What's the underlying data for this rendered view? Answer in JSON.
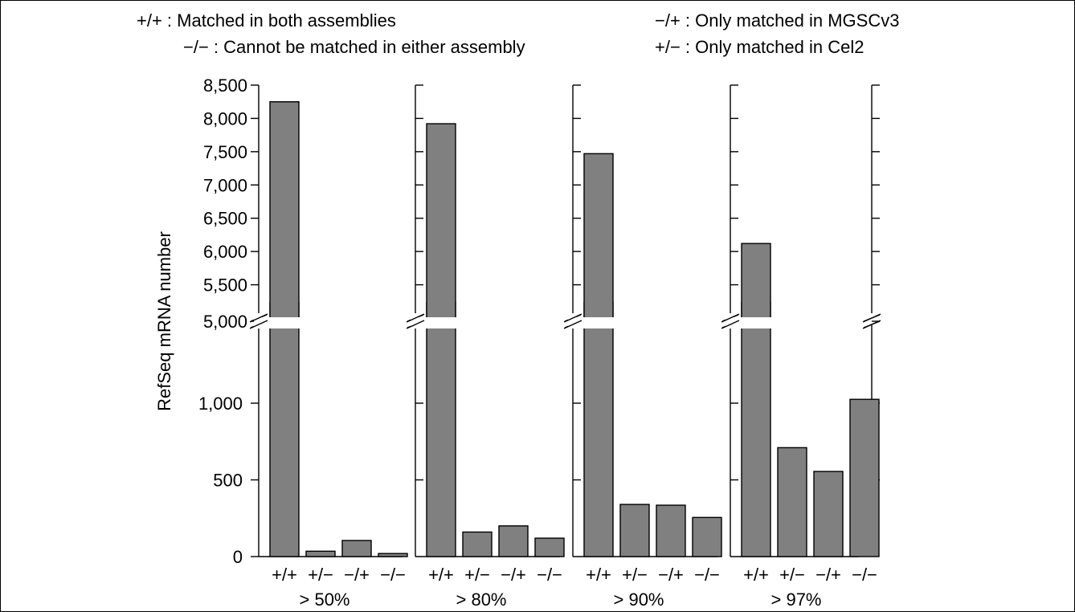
{
  "legend": [
    {
      "key": "+/+",
      "text": "+/+ : Matched in both assemblies"
    },
    {
      "key": "−/−",
      "text": "−/− : Cannot be matched in either assembly"
    },
    {
      "key": "−/+",
      "text": "−/+ : Only matched in MGSCv3"
    },
    {
      "key": "+/−",
      "text": "+/− : Only matched in Cel2"
    }
  ],
  "chart_data": {
    "type": "bar",
    "ylabel": "RefSeq mRNA number",
    "xlabel": "",
    "bar_color": "#808080",
    "broken_axis": {
      "lower_range": [
        0,
        1500
      ],
      "upper_range": [
        5000,
        8500
      ],
      "lower_ticks": [
        "0",
        "500",
        "1,000"
      ],
      "upper_ticks": [
        "5,000",
        "5,500",
        "6,000",
        "6,500",
        "7,000",
        "7,500",
        "8,000",
        "8,500"
      ]
    },
    "categories": [
      "+/+",
      "+/−",
      "−/+",
      "−/−"
    ],
    "panels": [
      {
        "label": "> 50%",
        "values": [
          8250,
          35,
          105,
          20
        ]
      },
      {
        "label": "> 80%",
        "values": [
          7920,
          160,
          200,
          120
        ]
      },
      {
        "label": "> 90%",
        "values": [
          7470,
          340,
          335,
          255
        ]
      },
      {
        "label": "> 97%",
        "values": [
          6120,
          710,
          555,
          1025
        ]
      }
    ]
  }
}
